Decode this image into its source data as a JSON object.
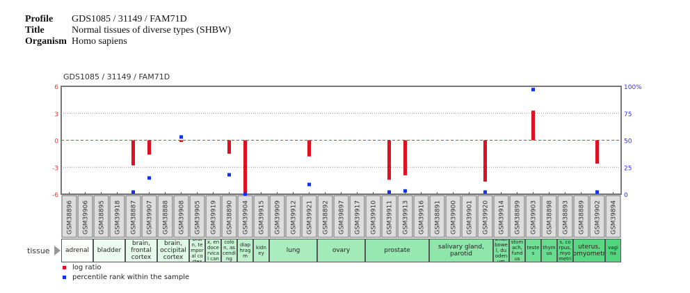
{
  "header": {
    "profile_label": "Profile",
    "profile": "GDS1085 / 31149 / FAM71D",
    "title_label": "Title",
    "title": "Normal tissues of diverse types (SHBW)",
    "organism_label": "Organism",
    "organism": "Homo sapiens"
  },
  "chart_data": {
    "type": "bar",
    "title": "GDS1085 / 31149 / FAM71D",
    "ylim": [
      -6,
      6
    ],
    "yticks": [
      "6",
      "3",
      "0",
      "-3",
      "-6"
    ],
    "y2lim": [
      0,
      100
    ],
    "y2ticks": [
      "100%",
      "75",
      "50",
      "25",
      "0"
    ],
    "grid": true,
    "colors": {
      "log_ratio": "#dd1122",
      "percentile": "#1133ee"
    },
    "categories": [
      "GSM38896",
      "GSM39906",
      "GSM38895",
      "GSM39918",
      "GSM38887",
      "GSM39907",
      "GSM38888",
      "GSM39908",
      "GSM39905",
      "GSM39919",
      "GSM38890",
      "GSM39904",
      "GSM39915",
      "GSM39909",
      "GSM39912",
      "GSM39921",
      "GSM38892",
      "GSM39897",
      "GSM39917",
      "GSM39910",
      "GSM39911",
      "GSM39913",
      "GSM39916",
      "GSM38891",
      "GSM39900",
      "GSM39901",
      "GSM39920",
      "GSM39914",
      "GSM38899",
      "GSM39903",
      "GSM38898",
      "GSM38893",
      "GSM38889",
      "GSM39902",
      "GSM39894"
    ],
    "series": [
      {
        "name": "log ratio",
        "values": [
          null,
          null,
          null,
          null,
          -2.8,
          -1.6,
          null,
          -0.2,
          null,
          null,
          -1.5,
          -6.0,
          null,
          null,
          null,
          -1.8,
          null,
          null,
          null,
          null,
          -4.4,
          -3.9,
          null,
          null,
          null,
          null,
          -4.6,
          null,
          null,
          3.3,
          null,
          null,
          null,
          -2.6,
          null
        ]
      },
      {
        "name": "percentile rank within the sample",
        "values": [
          null,
          null,
          null,
          null,
          2,
          15,
          null,
          53,
          null,
          null,
          18,
          0,
          null,
          null,
          null,
          9,
          null,
          null,
          null,
          null,
          2,
          3,
          null,
          null,
          null,
          null,
          2,
          null,
          null,
          97,
          null,
          null,
          null,
          2,
          null
        ]
      }
    ],
    "tissue_label": "tissue",
    "tissues": [
      {
        "name": "adrenal",
        "count": 2,
        "color": "#fafffb"
      },
      {
        "name": "bladder",
        "count": 2,
        "color": "#effcf2"
      },
      {
        "name": "brain, frontal cortex",
        "count": 2,
        "color": "#e6fbeb"
      },
      {
        "name": "brain, occipital cortex",
        "count": 2,
        "color": "#def9e5"
      },
      {
        "name": "brain, temporal cortex",
        "count": 1,
        "color": "#d5f7de"
      },
      {
        "name": "cervix, endocervical canal",
        "count": 1,
        "color": "#cdf5d8"
      },
      {
        "name": "colon, ascending",
        "count": 1,
        "color": "#c5f3d2"
      },
      {
        "name": "diaphragm",
        "count": 1,
        "color": "#bdf1cc"
      },
      {
        "name": "kidney",
        "count": 1,
        "color": "#b5efc6"
      },
      {
        "name": "lung",
        "count": 3,
        "color": "#aaecbe"
      },
      {
        "name": "ovary",
        "count": 3,
        "color": "#a2ebb8"
      },
      {
        "name": "prostate",
        "count": 4,
        "color": "#98e9b1"
      },
      {
        "name": "salivary gland, parotid",
        "count": 4,
        "color": "#8fe6aa"
      },
      {
        "name": "small bowel, duodenum",
        "count": 1,
        "color": "#80e2a0"
      },
      {
        "name": "stomach, fundus",
        "count": 1,
        "color": "#7ae19b"
      },
      {
        "name": "testes",
        "count": 1,
        "color": "#70df95"
      },
      {
        "name": "thymus",
        "count": 1,
        "color": "#68dc8e"
      },
      {
        "name": "uterus, corpus, myometrium",
        "count": 1,
        "color": "#60da88"
      },
      {
        "name": "uterus, endomyometrium",
        "count": 2,
        "color": "#58d883"
      },
      {
        "name": "vagina",
        "count": 1,
        "color": "#50d67d"
      }
    ]
  }
}
